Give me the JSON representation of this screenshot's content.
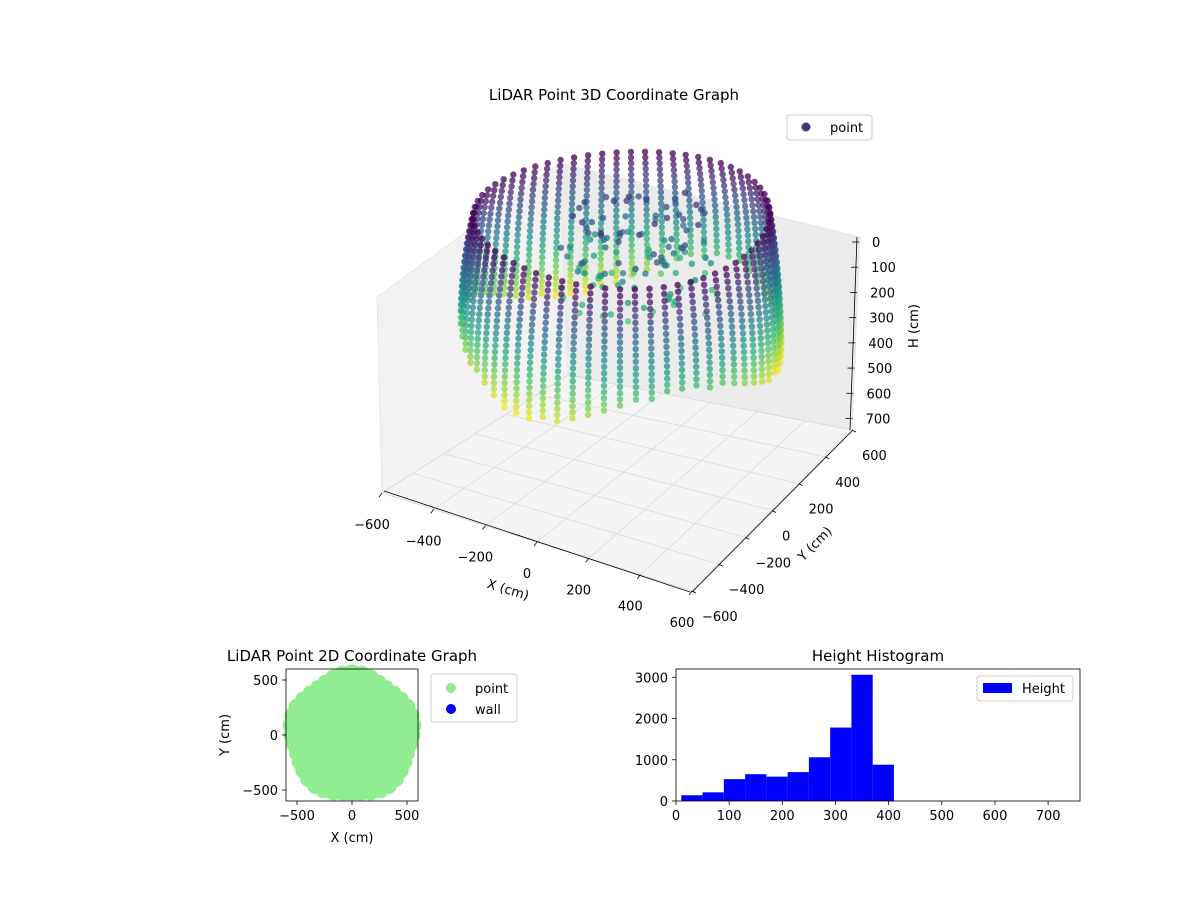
{
  "chart_data": [
    {
      "type": "scatter3d",
      "title": "LiDAR Point 3D Coordinate Graph",
      "xlabel": "X (cm)",
      "ylabel": "Y (cm)",
      "zlabel": "H (cm)",
      "xlim": [
        -600,
        600
      ],
      "ylim": [
        -600,
        600
      ],
      "zlim": [
        0,
        750
      ],
      "z_inverted": true,
      "xticks": [
        "−600",
        "−400",
        "−200",
        "0",
        "200",
        "400",
        "600"
      ],
      "yticks": [
        "−600",
        "−400",
        "−200",
        "0",
        "200",
        "400",
        "600"
      ],
      "zticks": [
        "0",
        "100",
        "200",
        "300",
        "400",
        "500",
        "600",
        "700"
      ],
      "legend": {
        "label": "point",
        "color": "#46337e",
        "placement": "top-right"
      },
      "colormap": "viridis",
      "grid": true,
      "series": [
        {
          "name": "point",
          "description_points": {
            "wall_radius": 560,
            "ring_count": 64,
            "height_range": [
              0,
              720
            ],
            "sample_rings": [
              {
                "angle_deg": 0,
                "h_top": 0,
                "h_bottom": 380
              },
              {
                "angle_deg": 90,
                "h_top": 0,
                "h_bottom": 400
              },
              {
                "angle_deg": 180,
                "h_top": 0,
                "h_bottom": 390
              },
              {
                "angle_deg": 270,
                "h_top": 0,
                "h_bottom": 420
              }
            ]
          }
        }
      ]
    },
    {
      "type": "scatter",
      "title": "LiDAR Point 2D Coordinate Graph",
      "xlabel": "X (cm)",
      "ylabel": "Y (cm)",
      "xlim": [
        -600,
        600
      ],
      "ylim": [
        -600,
        600
      ],
      "xticks": [
        "−500",
        "0",
        "500"
      ],
      "yticks": [
        "−500",
        "0",
        "500"
      ],
      "legend_placement": "outside-right",
      "series": [
        {
          "name": "point",
          "color": "#90ee90",
          "shape": "disk",
          "radius": 560
        },
        {
          "name": "wall",
          "color": "#0000ff",
          "values": []
        }
      ]
    },
    {
      "type": "bar",
      "title": "Height Histogram",
      "xlim": [
        0,
        760
      ],
      "ylim": [
        0,
        3200
      ],
      "xticks": [
        "0",
        "100",
        "200",
        "300",
        "400",
        "500",
        "600",
        "700"
      ],
      "yticks": [
        "0",
        "1000",
        "2000",
        "3000"
      ],
      "legend": {
        "label": "Height",
        "color": "#0000ff",
        "placement": "top-right"
      },
      "bin_width": 40,
      "bins": [
        {
          "start": 10,
          "count": 140
        },
        {
          "start": 50,
          "count": 210
        },
        {
          "start": 90,
          "count": 530
        },
        {
          "start": 130,
          "count": 650
        },
        {
          "start": 170,
          "count": 590
        },
        {
          "start": 210,
          "count": 700
        },
        {
          "start": 250,
          "count": 1060
        },
        {
          "start": 290,
          "count": 1780
        },
        {
          "start": 330,
          "count": 3060
        },
        {
          "start": 370,
          "count": 880
        }
      ]
    }
  ]
}
